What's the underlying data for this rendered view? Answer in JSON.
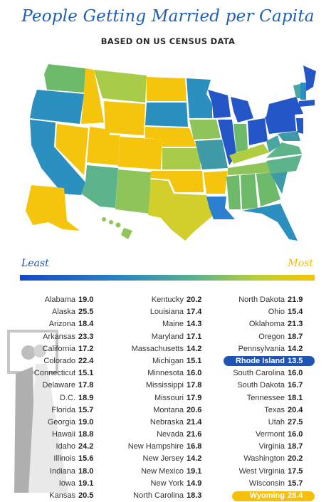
{
  "title": "People Getting Married per Capita",
  "subtitle": "BASED ON US CENSUS DATA",
  "legend": {
    "least": "Least",
    "most": "Most",
    "least_color": "#1747c8",
    "most_color": "#f7c400"
  },
  "highlight": {
    "lowest": "Rhode Island",
    "highest": "Wyoming"
  },
  "columns": [
    [
      {
        "state": "Alabama",
        "value": "19.0"
      },
      {
        "state": "Alaska",
        "value": "25.5"
      },
      {
        "state": "Arizona",
        "value": "18.4"
      },
      {
        "state": "Arkansas",
        "value": "23.3"
      },
      {
        "state": "California",
        "value": "17.2"
      },
      {
        "state": "Colorado",
        "value": "22.4"
      },
      {
        "state": "Connecticut",
        "value": "15.1"
      },
      {
        "state": "Delaware",
        "value": "17.8"
      },
      {
        "state": "D.C.",
        "value": "18.9"
      },
      {
        "state": "Florida",
        "value": "15.7"
      },
      {
        "state": "Georgia",
        "value": "19.0"
      },
      {
        "state": "Hawaii",
        "value": "18.8"
      },
      {
        "state": "Idaho",
        "value": "24.2"
      },
      {
        "state": "Illinois",
        "value": "15.6"
      },
      {
        "state": "Indiana",
        "value": "18.0"
      },
      {
        "state": "Iowa",
        "value": "19.1"
      },
      {
        "state": "Kansas",
        "value": "20.5"
      }
    ],
    [
      {
        "state": "Kentucky",
        "value": "20.2"
      },
      {
        "state": "Louisiana",
        "value": "17.4"
      },
      {
        "state": "Maine",
        "value": "14.3"
      },
      {
        "state": "Maryland",
        "value": "17.1"
      },
      {
        "state": "Massachusetts",
        "value": "14.2"
      },
      {
        "state": "Michigan",
        "value": "15.1"
      },
      {
        "state": "Minnesota",
        "value": "16.0"
      },
      {
        "state": "Mississippi",
        "value": "17.8"
      },
      {
        "state": "Missouri",
        "value": "17.9"
      },
      {
        "state": "Montana",
        "value": "20.6"
      },
      {
        "state": "Nebraska",
        "value": "21.4"
      },
      {
        "state": "Nevada",
        "value": "21.6"
      },
      {
        "state": "New Hampshire",
        "value": "16.8"
      },
      {
        "state": "New Jersey",
        "value": "14.2"
      },
      {
        "state": "New Mexico",
        "value": "19.1"
      },
      {
        "state": "New York",
        "value": "14.9"
      },
      {
        "state": "North Carolina",
        "value": "18.3"
      }
    ],
    [
      {
        "state": "North Dakota",
        "value": "21.9"
      },
      {
        "state": "Ohio",
        "value": "15.4"
      },
      {
        "state": "Oklahoma",
        "value": "21.3"
      },
      {
        "state": "Oregon",
        "value": "18.7"
      },
      {
        "state": "Pennsylvania",
        "value": "14.2"
      },
      {
        "state": "Rhode Island",
        "value": "13.5"
      },
      {
        "state": "South Carolina",
        "value": "16.0"
      },
      {
        "state": "South Dakota",
        "value": "16.7"
      },
      {
        "state": "Tennessee",
        "value": "18.1"
      },
      {
        "state": "Texas",
        "value": "20.4"
      },
      {
        "state": "Utah",
        "value": "27.5"
      },
      {
        "state": "Vermont",
        "value": "16.0"
      },
      {
        "state": "Virginia",
        "value": "18.7"
      },
      {
        "state": "Washington",
        "value": "20.2"
      },
      {
        "state": "West Virginia",
        "value": "17.5"
      },
      {
        "state": "Wisconsin",
        "value": "15.7"
      },
      {
        "state": "Wyoming",
        "value": "28.4"
      }
    ]
  ]
}
